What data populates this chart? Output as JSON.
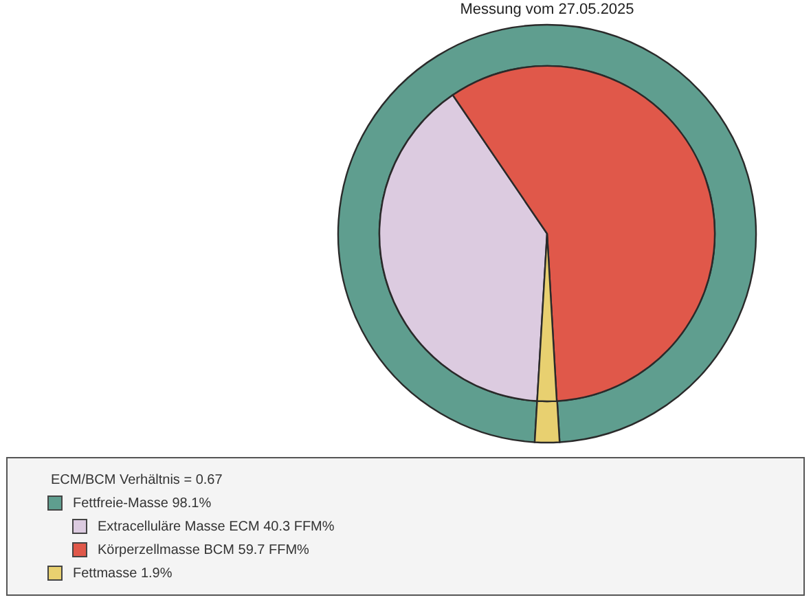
{
  "chart_data": {
    "type": "pie",
    "title": "Messung vom 27.05.2025",
    "categories": [
      "Fettfreie-Masse 98.1%",
      "Extracelluläre Masse ECM 40.3 FFM%",
      "Körperzellmasse BCM 59.7 FFM%",
      "Fettmasse 1.9%"
    ],
    "colors": [
      "#5f9e8f",
      "#dccbe0",
      "#e0584a",
      "#e8d070"
    ],
    "series": [
      {
        "type": "donut",
        "values": [
          98.1,
          null,
          null,
          1.9
        ]
      },
      {
        "type": "pie",
        "values": [
          null,
          40.3,
          59.7,
          1.9
        ]
      }
    ],
    "annotations": [
      "ECM/BCM Verhältnis = 0.67"
    ],
    "legend": "bottom left"
  }
}
